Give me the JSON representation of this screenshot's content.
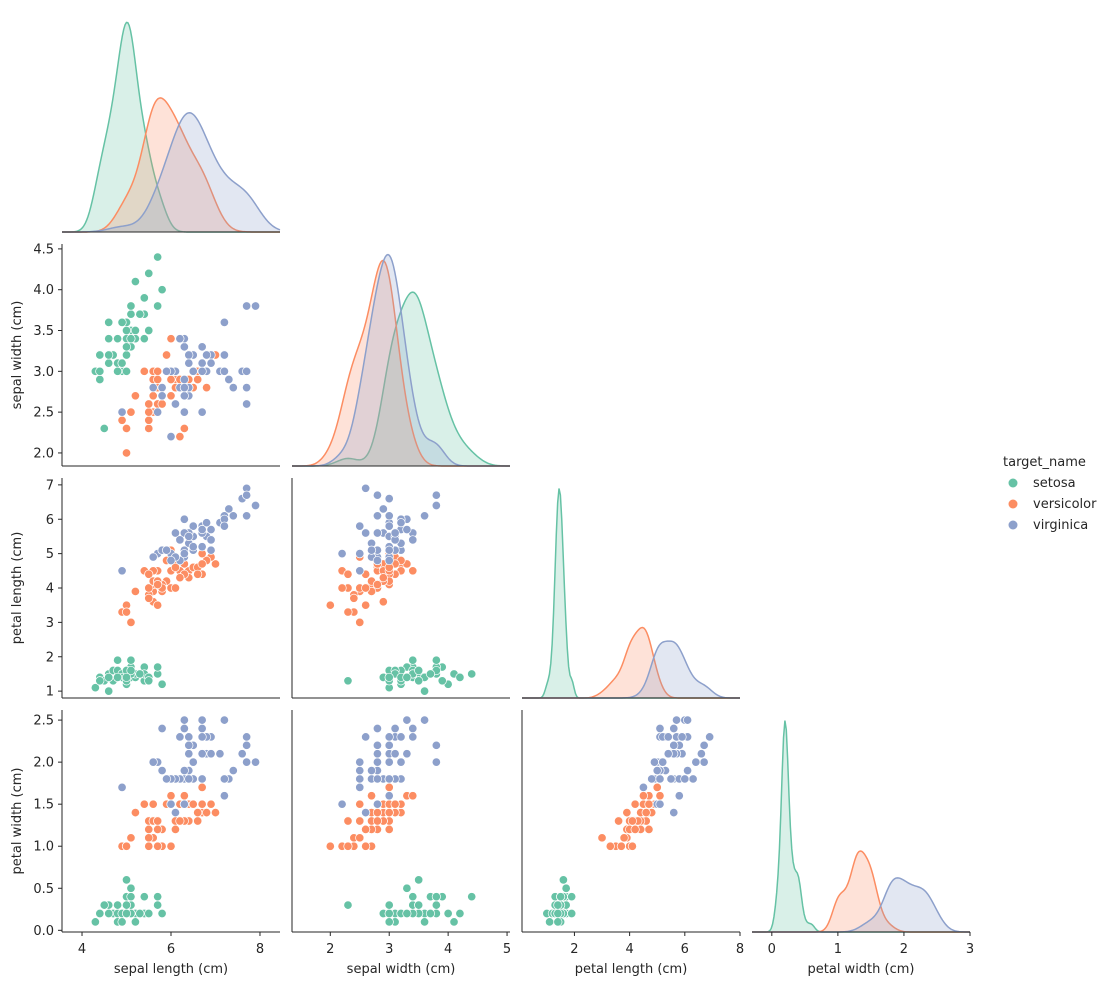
{
  "chart_data": {
    "type": "scatter",
    "kind": "pairplot",
    "corner": true,
    "diagonal_kind": "kde",
    "grid": false,
    "legend_placement": "right",
    "legend": {
      "title": "target_name",
      "entries": [
        "setosa",
        "versicolor",
        "virginica"
      ]
    },
    "colors": {
      "setosa": "#66c2a5",
      "versicolor": "#fc8d62",
      "virginica": "#8da0cb"
    },
    "variables": [
      {
        "key": "sl",
        "label": "sepal length (cm)",
        "lim": [
          3.55,
          8.45
        ],
        "ticks": [
          4,
          6,
          8
        ]
      },
      {
        "key": "sw",
        "label": "sepal width (cm)",
        "lim": [
          1.84,
          4.56
        ],
        "ticks": [
          2.0,
          2.5,
          3.0,
          3.5,
          4.0,
          4.5
        ],
        "xticks": [
          2,
          3,
          4,
          5
        ],
        "xlim": [
          1.35,
          5.05
        ]
      },
      {
        "key": "pl",
        "label": "petal length (cm)",
        "lim": [
          0.8,
          7.2
        ],
        "ticks": [
          1,
          2,
          3,
          4,
          5,
          6,
          7
        ],
        "xticks": [
          2,
          4,
          6,
          8
        ],
        "xlim": [
          0.1,
          8.0
        ]
      },
      {
        "key": "pw",
        "label": "petal width (cm)",
        "lim": [
          -0.02,
          2.62
        ],
        "ticks": [
          0.0,
          0.5,
          1.0,
          1.5,
          2.0,
          2.5
        ],
        "xticks": [
          0,
          1,
          2,
          3
        ],
        "xlim": [
          -0.3,
          3.0
        ]
      }
    ],
    "species": [
      {
        "name": "setosa",
        "data": [
          [
            5.1,
            3.5,
            1.4,
            0.2
          ],
          [
            4.9,
            3.0,
            1.4,
            0.2
          ],
          [
            4.7,
            3.2,
            1.3,
            0.2
          ],
          [
            4.6,
            3.1,
            1.5,
            0.2
          ],
          [
            5.0,
            3.6,
            1.4,
            0.2
          ],
          [
            5.4,
            3.9,
            1.7,
            0.4
          ],
          [
            4.6,
            3.4,
            1.4,
            0.3
          ],
          [
            5.0,
            3.4,
            1.5,
            0.2
          ],
          [
            4.4,
            2.9,
            1.4,
            0.2
          ],
          [
            4.9,
            3.1,
            1.5,
            0.1
          ],
          [
            5.4,
            3.7,
            1.5,
            0.2
          ],
          [
            4.8,
            3.4,
            1.6,
            0.2
          ],
          [
            4.8,
            3.0,
            1.4,
            0.1
          ],
          [
            4.3,
            3.0,
            1.1,
            0.1
          ],
          [
            5.8,
            4.0,
            1.2,
            0.2
          ],
          [
            5.7,
            4.4,
            1.5,
            0.4
          ],
          [
            5.4,
            3.9,
            1.3,
            0.4
          ],
          [
            5.1,
            3.5,
            1.4,
            0.3
          ],
          [
            5.7,
            3.8,
            1.7,
            0.3
          ],
          [
            5.1,
            3.8,
            1.5,
            0.3
          ],
          [
            5.4,
            3.4,
            1.7,
            0.2
          ],
          [
            5.1,
            3.7,
            1.5,
            0.4
          ],
          [
            4.6,
            3.6,
            1.0,
            0.2
          ],
          [
            5.1,
            3.3,
            1.7,
            0.5
          ],
          [
            4.8,
            3.4,
            1.9,
            0.2
          ],
          [
            5.0,
            3.0,
            1.6,
            0.2
          ],
          [
            5.0,
            3.4,
            1.6,
            0.4
          ],
          [
            5.2,
            3.5,
            1.5,
            0.2
          ],
          [
            5.2,
            3.4,
            1.4,
            0.2
          ],
          [
            4.7,
            3.2,
            1.6,
            0.2
          ],
          [
            4.8,
            3.1,
            1.6,
            0.2
          ],
          [
            5.4,
            3.4,
            1.5,
            0.4
          ],
          [
            5.2,
            4.1,
            1.5,
            0.1
          ],
          [
            5.5,
            4.2,
            1.4,
            0.2
          ],
          [
            4.9,
            3.1,
            1.5,
            0.2
          ],
          [
            5.0,
            3.2,
            1.2,
            0.2
          ],
          [
            5.5,
            3.5,
            1.3,
            0.2
          ],
          [
            4.9,
            3.6,
            1.4,
            0.1
          ],
          [
            4.4,
            3.0,
            1.3,
            0.2
          ],
          [
            5.1,
            3.4,
            1.5,
            0.2
          ],
          [
            5.0,
            3.5,
            1.3,
            0.3
          ],
          [
            4.5,
            2.3,
            1.3,
            0.3
          ],
          [
            4.4,
            3.2,
            1.3,
            0.2
          ],
          [
            5.0,
            3.5,
            1.6,
            0.6
          ],
          [
            5.1,
            3.8,
            1.9,
            0.4
          ],
          [
            4.8,
            3.0,
            1.4,
            0.3
          ],
          [
            5.1,
            3.8,
            1.6,
            0.2
          ],
          [
            4.6,
            3.2,
            1.4,
            0.2
          ],
          [
            5.3,
            3.7,
            1.5,
            0.2
          ],
          [
            5.0,
            3.3,
            1.4,
            0.2
          ]
        ]
      },
      {
        "name": "versicolor",
        "data": [
          [
            7.0,
            3.2,
            4.7,
            1.4
          ],
          [
            6.4,
            3.2,
            4.5,
            1.5
          ],
          [
            6.9,
            3.1,
            4.9,
            1.5
          ],
          [
            5.5,
            2.3,
            4.0,
            1.3
          ],
          [
            6.5,
            2.8,
            4.6,
            1.5
          ],
          [
            5.7,
            2.8,
            4.5,
            1.3
          ],
          [
            6.3,
            3.3,
            4.7,
            1.6
          ],
          [
            4.9,
            2.4,
            3.3,
            1.0
          ],
          [
            6.6,
            2.9,
            4.6,
            1.3
          ],
          [
            5.2,
            2.7,
            3.9,
            1.4
          ],
          [
            5.0,
            2.0,
            3.5,
            1.0
          ],
          [
            5.9,
            3.0,
            4.2,
            1.5
          ],
          [
            6.0,
            2.2,
            4.0,
            1.0
          ],
          [
            6.1,
            2.9,
            4.7,
            1.4
          ],
          [
            5.6,
            2.9,
            3.6,
            1.3
          ],
          [
            6.7,
            3.1,
            4.4,
            1.4
          ],
          [
            5.6,
            3.0,
            4.5,
            1.5
          ],
          [
            5.8,
            2.7,
            4.1,
            1.0
          ],
          [
            6.2,
            2.2,
            4.5,
            1.5
          ],
          [
            5.6,
            2.5,
            3.9,
            1.1
          ],
          [
            5.9,
            3.2,
            4.8,
            1.8
          ],
          [
            6.1,
            2.8,
            4.0,
            1.3
          ],
          [
            6.3,
            2.5,
            4.9,
            1.5
          ],
          [
            6.1,
            2.8,
            4.7,
            1.2
          ],
          [
            6.4,
            2.9,
            4.3,
            1.3
          ],
          [
            6.6,
            3.0,
            4.4,
            1.4
          ],
          [
            6.8,
            2.8,
            4.8,
            1.4
          ],
          [
            6.7,
            3.0,
            5.0,
            1.7
          ],
          [
            6.0,
            2.9,
            4.5,
            1.5
          ],
          [
            5.7,
            2.6,
            3.5,
            1.0
          ],
          [
            5.5,
            2.4,
            3.8,
            1.1
          ],
          [
            5.5,
            2.4,
            3.7,
            1.0
          ],
          [
            5.8,
            2.7,
            3.9,
            1.2
          ],
          [
            6.0,
            2.7,
            5.1,
            1.6
          ],
          [
            5.4,
            3.0,
            4.5,
            1.5
          ],
          [
            6.0,
            3.4,
            4.5,
            1.6
          ],
          [
            6.7,
            3.1,
            4.7,
            1.5
          ],
          [
            6.3,
            2.3,
            4.4,
            1.3
          ],
          [
            5.6,
            3.0,
            4.1,
            1.3
          ],
          [
            5.5,
            2.5,
            4.0,
            1.3
          ],
          [
            5.5,
            2.6,
            4.4,
            1.2
          ],
          [
            6.1,
            3.0,
            4.6,
            1.4
          ],
          [
            5.8,
            2.6,
            4.0,
            1.2
          ],
          [
            5.0,
            2.3,
            3.3,
            1.0
          ],
          [
            5.6,
            2.7,
            4.2,
            1.3
          ],
          [
            5.7,
            3.0,
            4.2,
            1.2
          ],
          [
            5.7,
            2.9,
            4.2,
            1.3
          ],
          [
            6.2,
            2.9,
            4.3,
            1.3
          ],
          [
            5.1,
            2.5,
            3.0,
            1.1
          ],
          [
            5.7,
            2.8,
            4.1,
            1.3
          ]
        ]
      },
      {
        "name": "virginica",
        "data": [
          [
            6.3,
            3.3,
            6.0,
            2.5
          ],
          [
            5.8,
            2.7,
            5.1,
            1.9
          ],
          [
            7.1,
            3.0,
            5.9,
            2.1
          ],
          [
            6.3,
            2.9,
            5.6,
            1.8
          ],
          [
            6.5,
            3.0,
            5.8,
            2.2
          ],
          [
            7.6,
            3.0,
            6.6,
            2.1
          ],
          [
            4.9,
            2.5,
            4.5,
            1.7
          ],
          [
            7.3,
            2.9,
            6.3,
            1.8
          ],
          [
            6.7,
            2.5,
            5.8,
            1.8
          ],
          [
            7.2,
            3.6,
            6.1,
            2.5
          ],
          [
            6.5,
            3.2,
            5.1,
            2.0
          ],
          [
            6.4,
            2.7,
            5.3,
            1.9
          ],
          [
            6.8,
            3.0,
            5.5,
            2.1
          ],
          [
            5.7,
            2.5,
            5.0,
            2.0
          ],
          [
            5.8,
            2.8,
            5.1,
            2.4
          ],
          [
            6.4,
            3.2,
            5.3,
            2.3
          ],
          [
            6.5,
            3.0,
            5.5,
            1.8
          ],
          [
            7.7,
            3.8,
            6.7,
            2.2
          ],
          [
            7.7,
            2.6,
            6.9,
            2.3
          ],
          [
            6.0,
            2.2,
            5.0,
            1.5
          ],
          [
            6.9,
            3.2,
            5.7,
            2.3
          ],
          [
            5.6,
            2.8,
            4.9,
            2.0
          ],
          [
            7.7,
            2.8,
            6.7,
            2.0
          ],
          [
            6.3,
            2.7,
            4.9,
            1.8
          ],
          [
            6.7,
            3.3,
            5.7,
            2.1
          ],
          [
            7.2,
            3.2,
            6.0,
            1.8
          ],
          [
            6.2,
            2.8,
            4.8,
            1.8
          ],
          [
            6.1,
            3.0,
            4.9,
            1.8
          ],
          [
            6.4,
            2.8,
            5.6,
            2.1
          ],
          [
            7.2,
            3.0,
            5.8,
            1.6
          ],
          [
            7.4,
            2.8,
            6.1,
            1.9
          ],
          [
            7.9,
            3.8,
            6.4,
            2.0
          ],
          [
            6.4,
            2.8,
            5.6,
            2.2
          ],
          [
            6.3,
            2.8,
            5.1,
            1.5
          ],
          [
            6.1,
            2.6,
            5.6,
            1.4
          ],
          [
            7.7,
            3.0,
            6.1,
            2.3
          ],
          [
            6.3,
            3.4,
            5.6,
            2.4
          ],
          [
            6.4,
            3.1,
            5.5,
            1.8
          ],
          [
            6.0,
            3.0,
            4.8,
            1.8
          ],
          [
            6.9,
            3.1,
            5.4,
            2.1
          ],
          [
            6.7,
            3.1,
            5.6,
            2.4
          ],
          [
            6.9,
            3.1,
            5.1,
            2.3
          ],
          [
            5.8,
            2.7,
            5.1,
            1.9
          ],
          [
            6.8,
            3.2,
            5.9,
            2.3
          ],
          [
            6.7,
            3.3,
            5.7,
            2.5
          ],
          [
            6.7,
            3.0,
            5.2,
            2.3
          ],
          [
            6.3,
            2.5,
            5.0,
            1.9
          ],
          [
            6.5,
            3.0,
            5.2,
            2.0
          ],
          [
            6.2,
            3.4,
            5.4,
            2.3
          ],
          [
            5.9,
            3.0,
            5.1,
            1.8
          ]
        ]
      }
    ]
  }
}
